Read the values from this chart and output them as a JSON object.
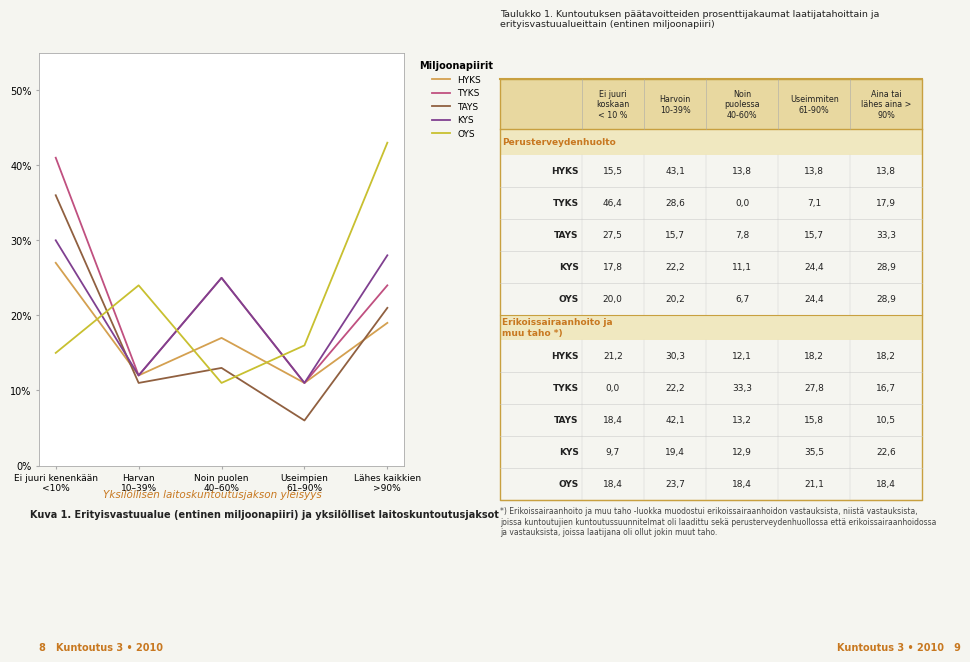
{
  "legend_title": "Miljoonapiirit",
  "xlabel": "Yksilöllisen laitoskuntoutusjakson yleisyys",
  "caption": "Kuva 1. Erityisvastuualue (entinen miljoonapiiri) ja yksilölliset laitoskuntoutusjaksot",
  "categories": [
    "Ei juuri kenenkään\n<10%",
    "Harvan\n10–39%",
    "Noin puolen\n40–60%",
    "Useimpien\n61–90%",
    "Lähes kaikkien\n>90%"
  ],
  "series": [
    {
      "name": "HYKS",
      "values": [
        27,
        12,
        17,
        11,
        19
      ],
      "color": "#D4A050"
    },
    {
      "name": "TYKS",
      "values": [
        41,
        12,
        25,
        11,
        24
      ],
      "color": "#C05080"
    },
    {
      "name": "TAYS",
      "values": [
        36,
        11,
        13,
        6,
        21
      ],
      "color": "#906040"
    },
    {
      "name": "KYS",
      "values": [
        30,
        12,
        25,
        11,
        28
      ],
      "color": "#804090"
    },
    {
      "name": "OYS",
      "values": [
        15,
        24,
        11,
        16,
        43
      ],
      "color": "#C8C030"
    }
  ],
  "ylim": [
    0,
    55
  ],
  "yticks": [
    0,
    10,
    20,
    30,
    40,
    50
  ],
  "bg_color": "#f5f5f0",
  "plot_bg": "#ffffff",
  "xlabel_color": "#C87820",
  "table_title": "Taulukko 1. Kuntoutuksen päätavoitteiden prosenttijakaumat laatijatahoittain ja\nerityisvastuualueittain (entinen miljoonapiiri)",
  "col_headers": [
    "Ei juuri\nkoskaan\n< 10 %",
    "Harvoin\n10-39%",
    "Noin\npuolessa\n40-60%",
    "Useimmiten\n61-90%",
    "Aina tai\nlähes aina >\n90%"
  ],
  "row_section1": "Perusterveydenhuolto",
  "section1_data": [
    [
      "HYKS",
      "15,5",
      "43,1",
      "13,8",
      "13,8",
      "13,8"
    ],
    [
      "TYKS",
      "46,4",
      "28,6",
      "0,0",
      "7,1",
      "17,9"
    ],
    [
      "TAYS",
      "27,5",
      "15,7",
      "7,8",
      "15,7",
      "33,3"
    ],
    [
      "KYS",
      "17,8",
      "22,2",
      "11,1",
      "24,4",
      "28,9"
    ],
    [
      "OYS",
      "20,0",
      "20,2",
      "6,7",
      "24,4",
      "28,9"
    ]
  ],
  "row_section2": "Erikoissairaanhoito ja\nmuu taho *)",
  "section2_data": [
    [
      "HYKS",
      "21,2",
      "30,3",
      "12,1",
      "18,2",
      "18,2"
    ],
    [
      "TYKS",
      "0,0",
      "22,2",
      "33,3",
      "27,8",
      "16,7"
    ],
    [
      "TAYS",
      "18,4",
      "42,1",
      "13,2",
      "15,8",
      "10,5"
    ],
    [
      "KYS",
      "9,7",
      "19,4",
      "12,9",
      "35,5",
      "22,6"
    ],
    [
      "OYS",
      "18,4",
      "23,7",
      "18,4",
      "21,1",
      "18,4"
    ]
  ],
  "footnote": "*) Erikoissairaanhoito ja muu taho -luokka muodostui erikoissairaanhoidon vastauksista, niistä vastauksista,\njoissa kuntoutujien kuntoutussuunnitelmat oli laadittu sekä perusterveydenhuollossa että erikoissairaanhoidossa\nja vastauksista, joissa laatijana oli ollut jokin muut taho.",
  "footer_left": "8   Kuntoutus 3 • 2010",
  "footer_right": "Kuntoutus 3 • 2010   9"
}
